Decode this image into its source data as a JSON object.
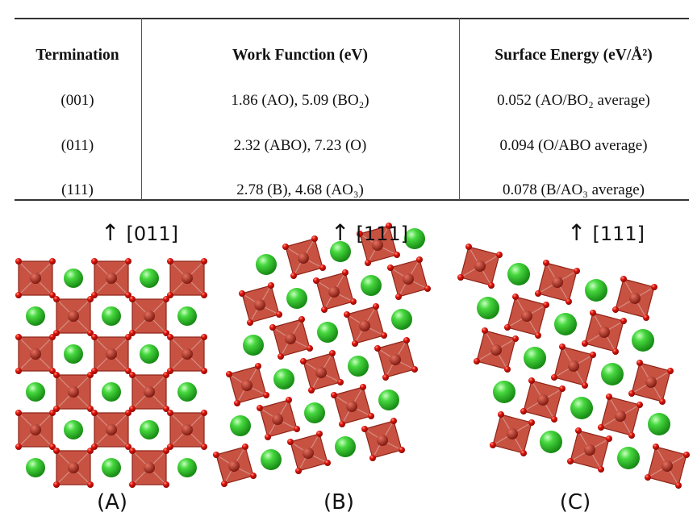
{
  "table": {
    "headers": [
      "Termination",
      "Work Function (eV)",
      "Surface Energy (eV/Å²)"
    ],
    "rows": [
      {
        "termination": "(001)",
        "work_function": "1.86 (AO), 5.09 (BO₂)",
        "surface_energy": "0.052 (AO/BO₂ average)"
      },
      {
        "termination": "(011)",
        "work_function": "2.32 (ABO), 7.23 (O)",
        "surface_energy": "0.094 (O/ABO average)"
      },
      {
        "termination": "(111)",
        "work_function": "2.78 (B), 4.68 (AO₃)",
        "surface_energy": "0.078 (B/AO₃ average)"
      }
    ]
  },
  "figure": {
    "panels": [
      {
        "label": "(A)",
        "direction": "[011]"
      },
      {
        "label": "(B)",
        "direction": "[111]"
      },
      {
        "label": "(C)",
        "direction": "[111]"
      }
    ],
    "colors": {
      "octahedron": "#c03a28",
      "octahedron_edge": "#8e2418",
      "oxygen": "#e0140c",
      "a_cation": "#3fcf3a"
    },
    "icons": [
      "up-arrow-icon"
    ]
  }
}
